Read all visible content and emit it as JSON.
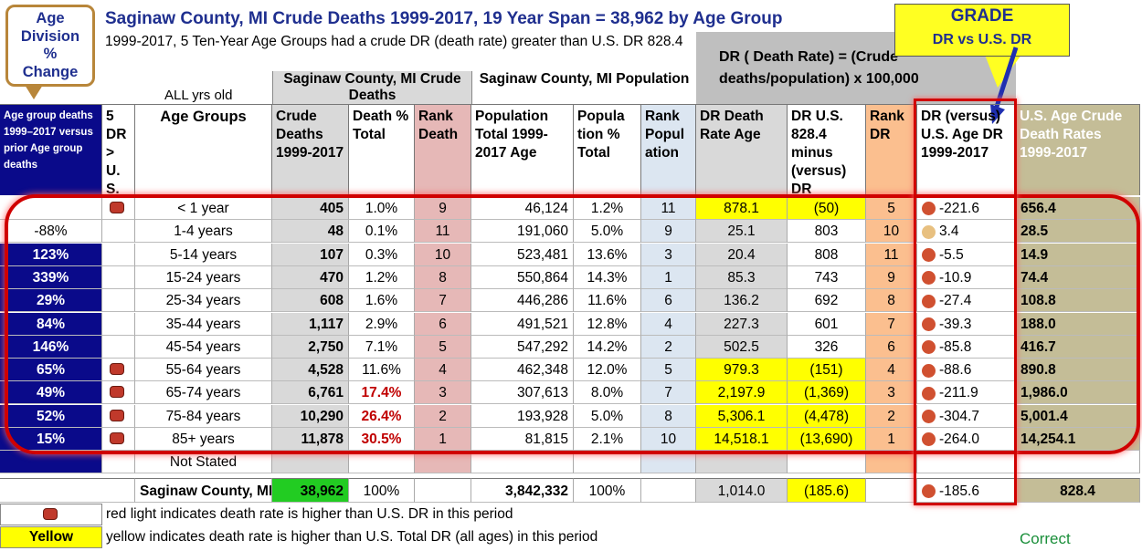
{
  "title": "Saginaw County, MI Crude Deaths 1999-2017, 19 Year Span = 38,962 by Age Group",
  "subtitle": "1999-2017, 5 Ten-Year Age Groups had a crude DR (death rate) greater than U.S. DR  828.4",
  "callout_age": {
    "l1": "Age",
    "l2": "Division",
    "l3": "%",
    "l4": "Change"
  },
  "callout_grade": {
    "l1": "GRADE",
    "l2": "DR vs U.S. DR"
  },
  "dr_formula": "DR ( Death Rate) = (Crude deaths/population) x 100,000",
  "group_crude": "Saginaw County, MI Crude Deaths",
  "group_pop": "Saginaw County, MI Population",
  "all_yrs": "ALL yrs old",
  "headers": {
    "change": "Age group deaths 1999–2017 versus prior Age group deaths",
    "flag": "5 DR > U. S.",
    "age": "Age Groups",
    "deaths": "Crude Deaths 1999-2017",
    "death_pct": "Death % Total",
    "rank_death": "Rank Death",
    "pop": "Population Total 1999-2017 Age",
    "pop_pct": "Popula tion % Total",
    "rank_pop": "Rank Popul ation",
    "dr": "DR Death Rate Age",
    "dr_minus": "DR U.S. 828.4 minus (versus) DR",
    "rank_dr": "Rank DR",
    "vs_us": "DR (versus) U.S. Age DR 1999-2017",
    "us_rate": "U.S. Age Crude Death Rates 1999-2017"
  },
  "rows": [
    {
      "change": "",
      "flag": true,
      "age": "< 1 year",
      "deaths": "405",
      "dpct": "1.0%",
      "rd": "9",
      "pop": "46,124",
      "ppct": "1.2%",
      "rp": "11",
      "dr": "878.1",
      "drm": "(50)",
      "rdr": "5",
      "vs": "-221.6",
      "us": "656.4",
      "yel": true
    },
    {
      "change": "-88%",
      "flag": false,
      "age": "1-4 years",
      "deaths": "48",
      "dpct": "0.1%",
      "rd": "11",
      "pop": "191,060",
      "ppct": "5.0%",
      "rp": "9",
      "dr": "25.1",
      "drm": "803",
      "rdr": "10",
      "vs": "3.4",
      "us": "28.5",
      "yel": false
    },
    {
      "change": "123%",
      "flag": false,
      "age": "5-14 years",
      "deaths": "107",
      "dpct": "0.3%",
      "rd": "10",
      "pop": "523,481",
      "ppct": "13.6%",
      "rp": "3",
      "dr": "20.4",
      "drm": "808",
      "rdr": "11",
      "vs": "-5.5",
      "us": "14.9",
      "yel": false
    },
    {
      "change": "339%",
      "flag": false,
      "age": "15-24 years",
      "deaths": "470",
      "dpct": "1.2%",
      "rd": "8",
      "pop": "550,864",
      "ppct": "14.3%",
      "rp": "1",
      "dr": "85.3",
      "drm": "743",
      "rdr": "9",
      "vs": "-10.9",
      "us": "74.4",
      "yel": false
    },
    {
      "change": "29%",
      "flag": false,
      "age": "25-34 years",
      "deaths": "608",
      "dpct": "1.6%",
      "rd": "7",
      "pop": "446,286",
      "ppct": "11.6%",
      "rp": "6",
      "dr": "136.2",
      "drm": "692",
      "rdr": "8",
      "vs": "-27.4",
      "us": "108.8",
      "yel": false
    },
    {
      "change": "84%",
      "flag": false,
      "age": "35-44 years",
      "deaths": "1,117",
      "dpct": "2.9%",
      "rd": "6",
      "pop": "491,521",
      "ppct": "12.8%",
      "rp": "4",
      "dr": "227.3",
      "drm": "601",
      "rdr": "7",
      "vs": "-39.3",
      "us": "188.0",
      "yel": false
    },
    {
      "change": "146%",
      "flag": false,
      "age": "45-54 years",
      "deaths": "2,750",
      "dpct": "7.1%",
      "rd": "5",
      "pop": "547,292",
      "ppct": "14.2%",
      "rp": "2",
      "dr": "502.5",
      "drm": "326",
      "rdr": "6",
      "vs": "-85.8",
      "us": "416.7",
      "yel": false
    },
    {
      "change": "65%",
      "flag": true,
      "age": "55-64 years",
      "deaths": "4,528",
      "dpct": "11.6%",
      "rd": "4",
      "pop": "462,348",
      "ppct": "12.0%",
      "rp": "5",
      "dr": "979.3",
      "drm": "(151)",
      "rdr": "4",
      "vs": "-88.6",
      "us": "890.8",
      "yel": true
    },
    {
      "change": "49%",
      "flag": true,
      "age": "65-74 years",
      "deaths": "6,761",
      "dpct": "17.4%",
      "rd": "3",
      "pop": "307,613",
      "ppct": "8.0%",
      "rp": "7",
      "dr": "2,197.9",
      "drm": "(1,369)",
      "rdr": "3",
      "vs": "-211.9",
      "us": "1,986.0",
      "yel": true,
      "red": true
    },
    {
      "change": "52%",
      "flag": true,
      "age": "75-84 years",
      "deaths": "10,290",
      "dpct": "26.4%",
      "rd": "2",
      "pop": "193,928",
      "ppct": "5.0%",
      "rp": "8",
      "dr": "5,306.1",
      "drm": "(4,478)",
      "rdr": "2",
      "vs": "-304.7",
      "us": "5,001.4",
      "yel": true,
      "red": true
    },
    {
      "change": "15%",
      "flag": true,
      "age": "85+ years",
      "deaths": "11,878",
      "dpct": "30.5%",
      "rd": "1",
      "pop": "81,815",
      "ppct": "2.1%",
      "rp": "10",
      "dr": "14,518.1",
      "drm": "(13,690)",
      "rdr": "1",
      "vs": "-264.0",
      "us": "14,254.1",
      "yel": true,
      "red": true
    },
    {
      "change": "",
      "flag": false,
      "age": "Not Stated",
      "deaths": "",
      "dpct": "",
      "rd": "",
      "pop": "",
      "ppct": "",
      "rp": "",
      "dr": "",
      "drm": "",
      "rdr": "",
      "vs": "",
      "us": "",
      "yel": false
    }
  ],
  "total": {
    "label": "Saginaw County, MI",
    "deaths": "38,962",
    "dpct": "100%",
    "pop": "3,842,332",
    "ppct": "100%",
    "dr": "1,014.0",
    "drm": "(185.6)",
    "vs": "-185.6",
    "us": "828.4"
  },
  "legend": {
    "red": "red light indicates death rate is higher than U.S. DR in this period",
    "yellow_label": "Yellow",
    "yellow": "yellow indicates death rate is higher than U.S. Total DR (all ages) in this period"
  },
  "correct": "Correct",
  "colors": {
    "navy": "#0a0a8a",
    "title": "#1f2f8f",
    "frame_red": "#d00000",
    "yellow": "#ffff00",
    "green": "#22cc22"
  }
}
